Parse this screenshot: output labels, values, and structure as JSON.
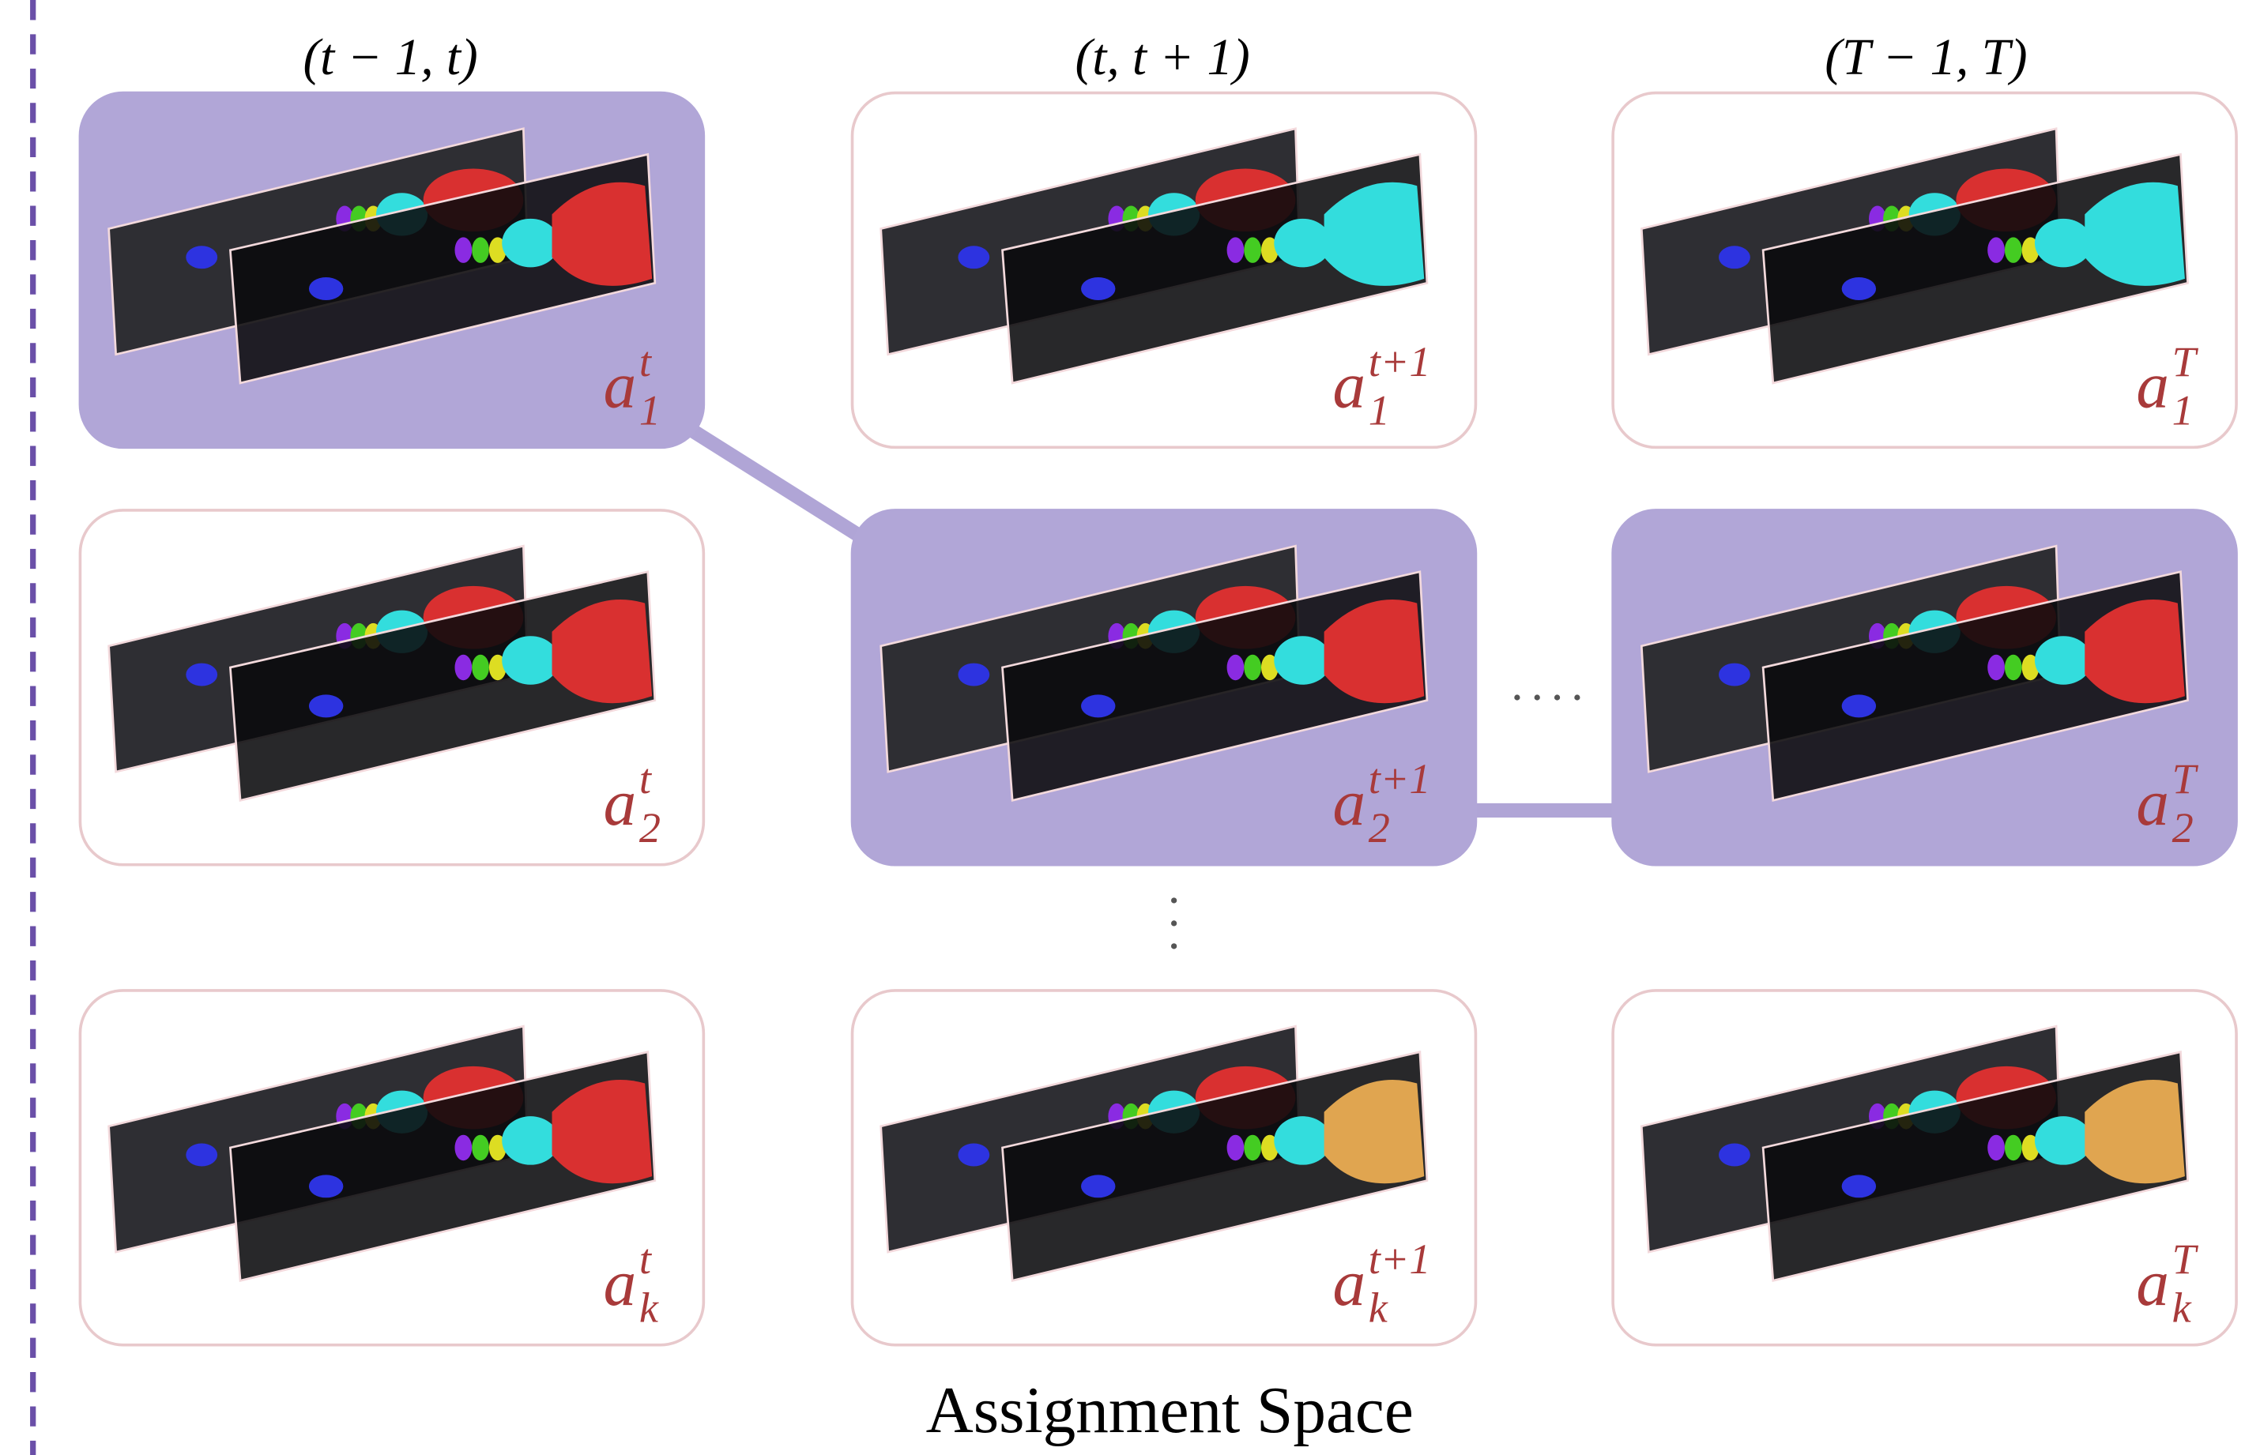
{
  "columns": [
    {
      "header": "(t − 1, t)",
      "cells": [
        {
          "base": "a",
          "sub": "1",
          "sup": "t",
          "selected": true
        },
        {
          "base": "a",
          "sub": "2",
          "sup": "t",
          "selected": false
        },
        {
          "base": "a",
          "sub": "k",
          "sup": "t",
          "selected": false
        }
      ]
    },
    {
      "header": "(t, t + 1)",
      "cells": [
        {
          "base": "a",
          "sub": "1",
          "sup": "t+1",
          "selected": false
        },
        {
          "base": "a",
          "sub": "2",
          "sup": "t+1",
          "selected": true
        },
        {
          "base": "a",
          "sub": "k",
          "sup": "t+1",
          "selected": false
        }
      ]
    },
    {
      "header": "(T − 1, T)",
      "cells": [
        {
          "base": "a",
          "sub": "1",
          "sup": "T",
          "selected": false
        },
        {
          "base": "a",
          "sub": "2",
          "sup": "T",
          "selected": true
        },
        {
          "base": "a",
          "sub": "k",
          "sup": "T",
          "selected": false
        }
      ]
    }
  ],
  "caption": "Assignment Space"
}
